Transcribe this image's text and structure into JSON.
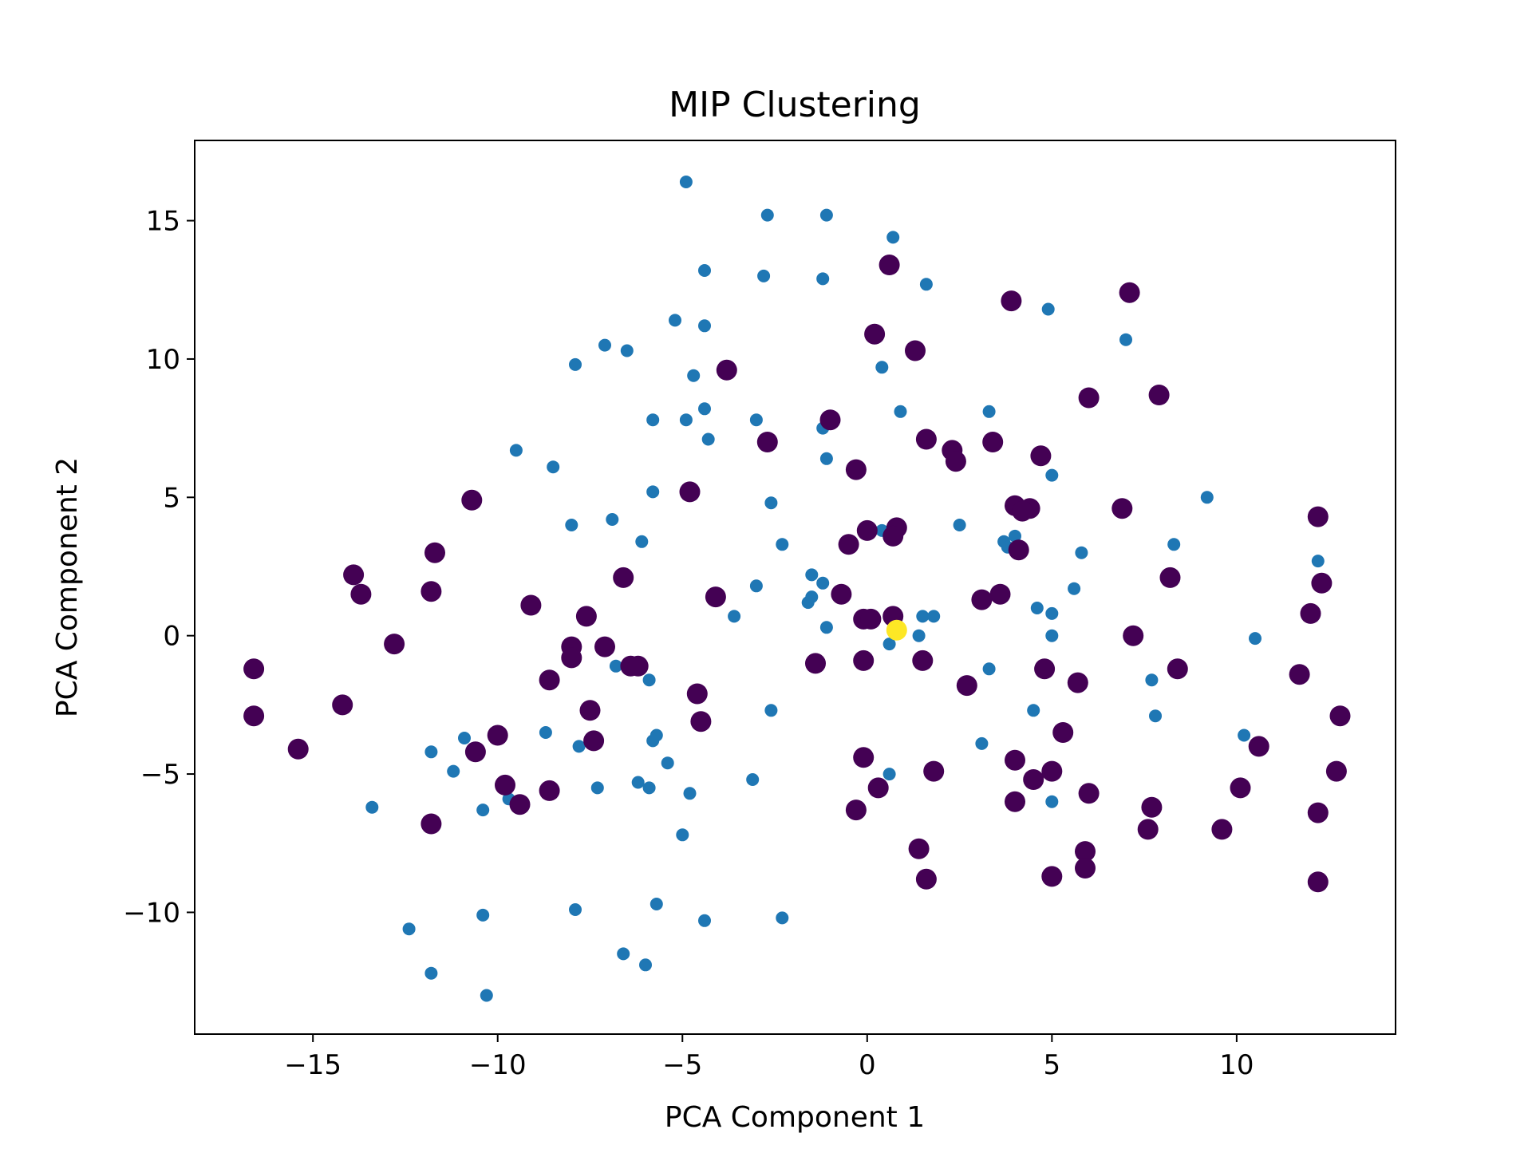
{
  "chart_data": {
    "type": "scatter",
    "title": "MIP Clustering",
    "xlabel": "PCA Component 1",
    "ylabel": "PCA Component 2",
    "xlim": [
      -18.2,
      14.3
    ],
    "ylim": [
      -14.4,
      17.9
    ],
    "xticks": [
      -15,
      -10,
      -5,
      0,
      5,
      10
    ],
    "yticks": [
      -10,
      -5,
      0,
      5,
      10,
      15
    ],
    "xtick_labels": [
      "−15",
      "−10",
      "−5",
      "0",
      "5",
      "10"
    ],
    "ytick_labels": [
      "−10",
      "−5",
      "0",
      "5",
      "10",
      "15"
    ],
    "grid": false,
    "series": [
      {
        "color": "#1f77b4",
        "marker_size": "small",
        "points": [
          [
            -4.9,
            16.4
          ],
          [
            -2.7,
            15.2
          ],
          [
            -1.1,
            15.2
          ],
          [
            0.7,
            14.4
          ],
          [
            -4.4,
            13.2
          ],
          [
            -2.8,
            13.0
          ],
          [
            -1.2,
            12.9
          ],
          [
            1.6,
            12.7
          ],
          [
            -5.2,
            11.4
          ],
          [
            -4.4,
            11.2
          ],
          [
            4.9,
            11.8
          ],
          [
            7.0,
            10.7
          ],
          [
            -7.1,
            10.5
          ],
          [
            -6.5,
            10.3
          ],
          [
            -7.9,
            9.8
          ],
          [
            -4.7,
            9.4
          ],
          [
            0.4,
            9.7
          ],
          [
            -4.4,
            8.2
          ],
          [
            -5.8,
            7.8
          ],
          [
            -4.9,
            7.8
          ],
          [
            -3.0,
            7.8
          ],
          [
            -1.2,
            7.5
          ],
          [
            0.9,
            8.1
          ],
          [
            3.3,
            8.1
          ],
          [
            -4.3,
            7.1
          ],
          [
            -9.5,
            6.7
          ],
          [
            -8.5,
            6.1
          ],
          [
            -1.1,
            6.4
          ],
          [
            5.0,
            5.8
          ],
          [
            -5.8,
            5.2
          ],
          [
            -2.6,
            4.8
          ],
          [
            -8.0,
            4.0
          ],
          [
            -6.9,
            4.2
          ],
          [
            2.5,
            4.0
          ],
          [
            9.2,
            5.0
          ],
          [
            0.4,
            3.8
          ],
          [
            -6.1,
            3.4
          ],
          [
            -2.3,
            3.3
          ],
          [
            3.7,
            3.4
          ],
          [
            3.8,
            3.2
          ],
          [
            4.0,
            3.6
          ],
          [
            5.8,
            3.0
          ],
          [
            8.3,
            3.3
          ],
          [
            12.2,
            2.7
          ],
          [
            -1.5,
            2.2
          ],
          [
            -1.2,
            1.9
          ],
          [
            -3.0,
            1.8
          ],
          [
            5.6,
            1.7
          ],
          [
            -1.6,
            1.2
          ],
          [
            -1.5,
            1.4
          ],
          [
            -3.6,
            0.7
          ],
          [
            1.5,
            0.7
          ],
          [
            1.8,
            0.7
          ],
          [
            4.6,
            1.0
          ],
          [
            5.0,
            0.8
          ],
          [
            -1.1,
            0.3
          ],
          [
            1.4,
            0.0
          ],
          [
            5.0,
            0.0
          ],
          [
            10.5,
            -0.1
          ],
          [
            0.6,
            -0.3
          ],
          [
            -6.8,
            -1.1
          ],
          [
            -5.9,
            -1.6
          ],
          [
            3.3,
            -1.2
          ],
          [
            7.7,
            -1.6
          ],
          [
            -2.6,
            -2.7
          ],
          [
            4.5,
            -2.7
          ],
          [
            7.8,
            -2.9
          ],
          [
            -8.7,
            -3.5
          ],
          [
            -5.7,
            -3.6
          ],
          [
            -5.8,
            -3.8
          ],
          [
            3.1,
            -3.9
          ],
          [
            10.2,
            -3.6
          ],
          [
            -10.9,
            -3.7
          ],
          [
            -11.8,
            -4.2
          ],
          [
            -7.8,
            -4.0
          ],
          [
            -5.4,
            -4.6
          ],
          [
            -11.2,
            -4.9
          ],
          [
            0.6,
            -5.0
          ],
          [
            -6.2,
            -5.3
          ],
          [
            -5.9,
            -5.5
          ],
          [
            -7.3,
            -5.5
          ],
          [
            -3.1,
            -5.2
          ],
          [
            -4.8,
            -5.7
          ],
          [
            5.0,
            -6.0
          ],
          [
            -13.4,
            -6.2
          ],
          [
            -10.4,
            -6.3
          ],
          [
            -9.7,
            -5.9
          ],
          [
            -5.0,
            -7.2
          ],
          [
            -11.8,
            -12.2
          ],
          [
            -12.4,
            -10.6
          ],
          [
            -10.4,
            -10.1
          ],
          [
            -7.9,
            -9.9
          ],
          [
            -5.7,
            -9.7
          ],
          [
            -4.4,
            -10.3
          ],
          [
            -2.3,
            -10.2
          ],
          [
            -6.6,
            -11.5
          ],
          [
            -6.0,
            -11.9
          ],
          [
            -10.3,
            -13.0
          ]
        ]
      },
      {
        "color": "#440154",
        "marker_size": "large",
        "points": [
          [
            0.6,
            13.4
          ],
          [
            3.9,
            12.1
          ],
          [
            7.1,
            12.4
          ],
          [
            0.2,
            10.9
          ],
          [
            1.3,
            10.3
          ],
          [
            -3.8,
            9.6
          ],
          [
            7.9,
            8.7
          ],
          [
            6.0,
            8.6
          ],
          [
            -1.0,
            7.8
          ],
          [
            -2.7,
            7.0
          ],
          [
            1.6,
            7.1
          ],
          [
            2.3,
            6.7
          ],
          [
            3.4,
            7.0
          ],
          [
            4.7,
            6.5
          ],
          [
            2.4,
            6.3
          ],
          [
            -0.3,
            6.0
          ],
          [
            -4.8,
            5.2
          ],
          [
            -10.7,
            4.9
          ],
          [
            4.0,
            4.7
          ],
          [
            4.4,
            4.6
          ],
          [
            4.2,
            4.5
          ],
          [
            6.9,
            4.6
          ],
          [
            12.2,
            4.3
          ],
          [
            0.8,
            3.9
          ],
          [
            0.7,
            3.6
          ],
          [
            0.0,
            3.8
          ],
          [
            -0.5,
            3.3
          ],
          [
            4.1,
            3.1
          ],
          [
            -11.7,
            3.0
          ],
          [
            -6.6,
            2.1
          ],
          [
            8.2,
            2.1
          ],
          [
            12.3,
            1.9
          ],
          [
            -13.9,
            2.2
          ],
          [
            -13.7,
            1.5
          ],
          [
            -11.8,
            1.6
          ],
          [
            -4.1,
            1.4
          ],
          [
            -0.7,
            1.5
          ],
          [
            3.6,
            1.5
          ],
          [
            3.1,
            1.3
          ],
          [
            -9.1,
            1.1
          ],
          [
            -7.6,
            0.7
          ],
          [
            0.7,
            0.7
          ],
          [
            -0.1,
            0.6
          ],
          [
            0.1,
            0.6
          ],
          [
            12.0,
            0.8
          ],
          [
            7.2,
            0.0
          ],
          [
            -12.8,
            -0.3
          ],
          [
            -8.0,
            -0.4
          ],
          [
            -7.1,
            -0.4
          ],
          [
            -8.0,
            -0.8
          ],
          [
            -6.4,
            -1.1
          ],
          [
            -6.2,
            -1.1
          ],
          [
            -1.4,
            -1.0
          ],
          [
            -0.1,
            -0.9
          ],
          [
            1.5,
            -0.9
          ],
          [
            4.8,
            -1.2
          ],
          [
            8.4,
            -1.2
          ],
          [
            -16.6,
            -1.2
          ],
          [
            -8.6,
            -1.6
          ],
          [
            2.7,
            -1.8
          ],
          [
            5.7,
            -1.7
          ],
          [
            11.7,
            -1.4
          ],
          [
            -4.6,
            -2.1
          ],
          [
            -14.2,
            -2.5
          ],
          [
            -7.5,
            -2.7
          ],
          [
            -16.6,
            -2.9
          ],
          [
            -4.5,
            -3.1
          ],
          [
            12.8,
            -2.9
          ],
          [
            -10.0,
            -3.6
          ],
          [
            5.3,
            -3.5
          ],
          [
            -7.4,
            -3.8
          ],
          [
            -15.4,
            -4.1
          ],
          [
            -10.6,
            -4.2
          ],
          [
            -0.1,
            -4.4
          ],
          [
            4.0,
            -4.5
          ],
          [
            10.6,
            -4.0
          ],
          [
            1.8,
            -4.9
          ],
          [
            5.0,
            -4.9
          ],
          [
            12.7,
            -4.9
          ],
          [
            -9.8,
            -5.4
          ],
          [
            -8.6,
            -5.6
          ],
          [
            0.3,
            -5.5
          ],
          [
            4.5,
            -5.2
          ],
          [
            10.1,
            -5.5
          ],
          [
            -9.4,
            -6.1
          ],
          [
            -11.8,
            -6.8
          ],
          [
            -0.3,
            -6.3
          ],
          [
            4.0,
            -6.0
          ],
          [
            6.0,
            -5.7
          ],
          [
            7.7,
            -6.2
          ],
          [
            12.2,
            -6.4
          ],
          [
            7.6,
            -7.0
          ],
          [
            9.6,
            -7.0
          ],
          [
            1.4,
            -7.7
          ],
          [
            5.9,
            -7.8
          ],
          [
            1.6,
            -8.8
          ],
          [
            5.9,
            -8.4
          ],
          [
            5.0,
            -8.7
          ],
          [
            12.2,
            -8.9
          ]
        ]
      },
      {
        "color": "#fde725",
        "marker_size": "large",
        "points": [
          [
            0.8,
            0.2
          ]
        ]
      }
    ]
  }
}
